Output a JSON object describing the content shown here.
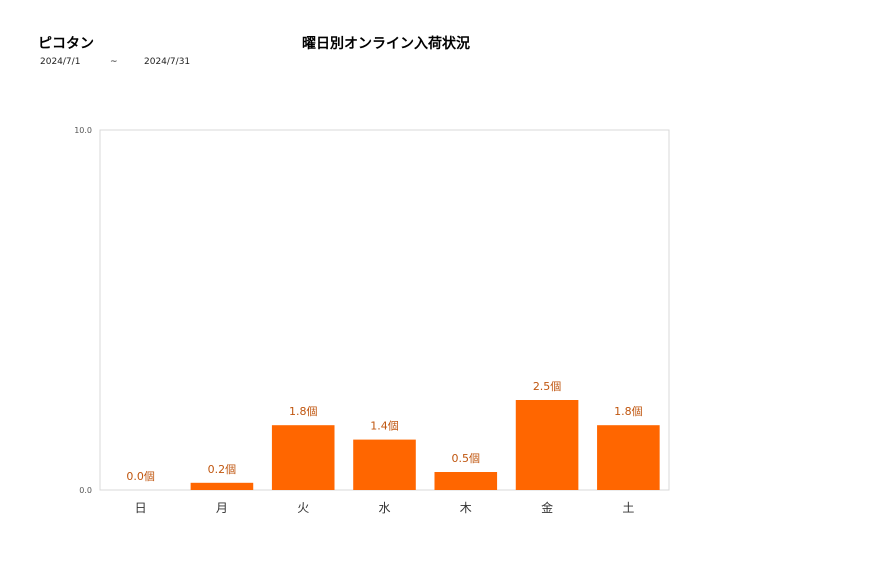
{
  "header": {
    "store_name": "ピコタン",
    "title": "曜日別オンライン入荷状況",
    "period_from": "2024/7/1",
    "period_separator": "~",
    "period_to": "2024/7/31"
  },
  "chart_data": {
    "type": "bar",
    "title": "曜日別オンライン入荷状況",
    "categories": [
      "日",
      "月",
      "火",
      "水",
      "木",
      "金",
      "土"
    ],
    "values": [
      0.0,
      0.2,
      1.8,
      1.4,
      0.5,
      2.5,
      1.8
    ],
    "data_labels": [
      "0.0個",
      "0.2個",
      "1.8個",
      "1.4個",
      "0.5個",
      "2.5個",
      "1.8個"
    ],
    "y_tick_labels": [
      "0.0",
      "10.0"
    ],
    "ylim": [
      0,
      10
    ],
    "xlabel": "",
    "ylabel": "",
    "grid": false,
    "legend": "none",
    "bar_color": "#ff6600",
    "label_color": "#c0560f"
  }
}
